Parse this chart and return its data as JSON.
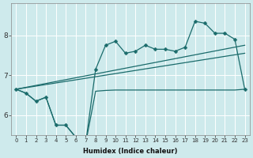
{
  "xlabel": "Humidex (Indice chaleur)",
  "bg_color": "#ceeaec",
  "grid_color": "#ffffff",
  "line_color": "#1a6b6b",
  "xlim": [
    -0.5,
    23.5
  ],
  "ylim": [
    5.5,
    8.8
  ],
  "xticks": [
    0,
    1,
    2,
    3,
    4,
    5,
    6,
    7,
    8,
    9,
    10,
    11,
    12,
    13,
    14,
    15,
    16,
    17,
    18,
    19,
    20,
    21,
    22,
    23
  ],
  "yticks": [
    6,
    7,
    8
  ],
  "series_main_x": [
    0,
    1,
    2,
    3,
    4,
    5,
    6,
    7,
    8,
    9,
    10,
    11,
    12,
    13,
    14,
    15,
    16,
    17,
    18,
    19,
    20,
    21,
    22,
    23
  ],
  "series_main_y": [
    6.65,
    6.55,
    6.35,
    6.45,
    5.75,
    5.75,
    5.45,
    5.3,
    7.15,
    7.75,
    7.85,
    7.55,
    7.6,
    7.75,
    7.65,
    7.65,
    7.6,
    7.7,
    8.35,
    8.3,
    8.05,
    8.05,
    7.9,
    6.65
  ],
  "series_min_x": [
    0,
    1,
    2,
    3,
    4,
    5,
    6,
    7,
    8,
    9,
    10,
    11,
    12,
    13,
    14,
    15,
    16,
    17,
    18,
    19,
    20,
    21,
    22,
    23
  ],
  "series_min_y": [
    6.65,
    6.55,
    6.35,
    6.45,
    5.75,
    5.75,
    5.45,
    5.3,
    6.6,
    6.62,
    6.63,
    6.63,
    6.63,
    6.63,
    6.63,
    6.63,
    6.63,
    6.63,
    6.63,
    6.63,
    6.63,
    6.63,
    6.63,
    6.65
  ],
  "trend_x": [
    0,
    23
  ],
  "trend_y": [
    6.65,
    7.75
  ],
  "trend2_x": [
    0,
    23
  ],
  "trend2_y": [
    6.65,
    7.55
  ]
}
